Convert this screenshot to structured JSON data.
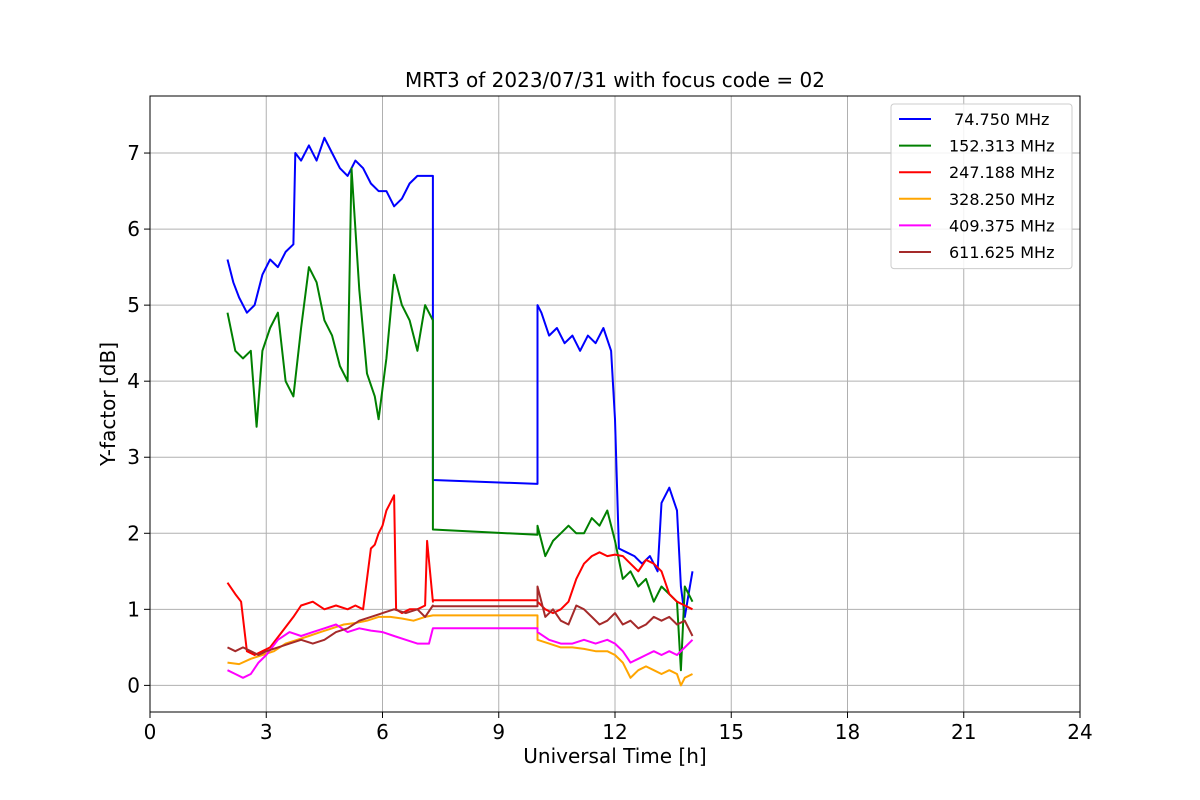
{
  "chart_data": {
    "type": "line",
    "title": "MRT3 of 2023/07/31 with focus code = 02",
    "xlabel": "Universal Time [h]",
    "ylabel": "Y-factor [dB]",
    "xlim": [
      0,
      24
    ],
    "ylim": [
      -0.35,
      7.75
    ],
    "xticks": [
      0,
      3,
      6,
      9,
      12,
      15,
      18,
      21,
      24
    ],
    "yticks": [
      0,
      1,
      2,
      3,
      4,
      5,
      6,
      7
    ],
    "grid": true,
    "legend_position": "top-right",
    "series": [
      {
        "name": " 74.750 MHz",
        "color": "#0000ff",
        "x": [
          2.0,
          2.15,
          2.3,
          2.5,
          2.7,
          2.9,
          3.1,
          3.3,
          3.5,
          3.7,
          3.75,
          3.9,
          4.1,
          4.3,
          4.5,
          4.7,
          4.9,
          5.1,
          5.3,
          5.5,
          5.7,
          5.9,
          6.1,
          6.3,
          6.5,
          6.7,
          6.9,
          7.1,
          7.2,
          7.3,
          7.3,
          10.0,
          10.0,
          10.1,
          10.3,
          10.5,
          10.7,
          10.9,
          11.1,
          11.3,
          11.5,
          11.7,
          11.9,
          12.0,
          12.1,
          12.3,
          12.5,
          12.7,
          12.9,
          13.1,
          13.2,
          13.4,
          13.6,
          13.7,
          13.8,
          13.9,
          14.0
        ],
        "y": [
          5.6,
          5.3,
          5.1,
          4.9,
          5.0,
          5.4,
          5.6,
          5.5,
          5.7,
          5.8,
          7.0,
          6.9,
          7.1,
          6.9,
          7.2,
          7.0,
          6.8,
          6.7,
          6.9,
          6.8,
          6.6,
          6.5,
          6.5,
          6.3,
          6.4,
          6.6,
          6.7,
          6.7,
          6.7,
          6.7,
          2.7,
          2.65,
          5.0,
          4.9,
          4.6,
          4.7,
          4.5,
          4.6,
          4.4,
          4.6,
          4.5,
          4.7,
          4.4,
          3.5,
          1.8,
          1.75,
          1.7,
          1.6,
          1.7,
          1.5,
          2.4,
          2.6,
          2.3,
          1.3,
          0.9,
          1.2,
          1.5
        ]
      },
      {
        "name": "152.313 MHz",
        "color": "#008000",
        "x": [
          2.0,
          2.2,
          2.4,
          2.6,
          2.75,
          2.9,
          3.1,
          3.3,
          3.5,
          3.7,
          3.9,
          4.1,
          4.3,
          4.5,
          4.7,
          4.9,
          5.1,
          5.2,
          5.4,
          5.6,
          5.8,
          5.9,
          6.1,
          6.3,
          6.5,
          6.7,
          6.9,
          7.1,
          7.2,
          7.3,
          7.3,
          10.0,
          10.0,
          10.2,
          10.4,
          10.6,
          10.8,
          11.0,
          11.2,
          11.4,
          11.6,
          11.8,
          12.0,
          12.2,
          12.4,
          12.6,
          12.8,
          13.0,
          13.2,
          13.4,
          13.6,
          13.7,
          13.8,
          14.0
        ],
        "y": [
          4.9,
          4.4,
          4.3,
          4.4,
          3.4,
          4.4,
          4.7,
          4.9,
          4.0,
          3.8,
          4.7,
          5.5,
          5.3,
          4.8,
          4.6,
          4.2,
          4.0,
          6.8,
          5.2,
          4.1,
          3.8,
          3.5,
          4.3,
          5.4,
          5.0,
          4.8,
          4.4,
          5.0,
          4.9,
          4.8,
          2.05,
          1.98,
          2.1,
          1.7,
          1.9,
          2.0,
          2.1,
          2.0,
          2.0,
          2.2,
          2.1,
          2.3,
          1.9,
          1.4,
          1.5,
          1.3,
          1.4,
          1.1,
          1.3,
          1.2,
          1.1,
          0.2,
          1.3,
          1.1
        ]
      },
      {
        "name": "247.188 MHz",
        "color": "#ff0000",
        "x": [
          2.0,
          2.2,
          2.35,
          2.5,
          2.7,
          2.9,
          3.1,
          3.4,
          3.7,
          3.9,
          4.2,
          4.5,
          4.8,
          5.1,
          5.3,
          5.5,
          5.7,
          5.8,
          5.9,
          6.0,
          6.1,
          6.2,
          6.3,
          6.35,
          6.5,
          6.7,
          6.9,
          7.1,
          7.15,
          7.3,
          7.3,
          10.0,
          10.0,
          10.2,
          10.4,
          10.6,
          10.8,
          11.0,
          11.2,
          11.4,
          11.6,
          11.8,
          12.0,
          12.2,
          12.4,
          12.6,
          12.8,
          13.0,
          13.2,
          13.4,
          13.6,
          13.8,
          14.0
        ],
        "y": [
          1.35,
          1.2,
          1.1,
          0.45,
          0.4,
          0.45,
          0.5,
          0.7,
          0.9,
          1.05,
          1.1,
          1.0,
          1.05,
          1.0,
          1.05,
          1.0,
          1.8,
          1.85,
          2.0,
          2.1,
          2.3,
          2.4,
          2.5,
          1.0,
          0.95,
          1.0,
          1.0,
          1.05,
          1.9,
          1.1,
          1.12,
          1.12,
          1.1,
          1.0,
          0.95,
          1.0,
          1.1,
          1.4,
          1.6,
          1.7,
          1.75,
          1.7,
          1.72,
          1.7,
          1.6,
          1.5,
          1.65,
          1.6,
          1.5,
          1.2,
          1.1,
          1.05,
          1.0
        ]
      },
      {
        "name": "328.250 MHz",
        "color": "#ffa500",
        "x": [
          2.0,
          2.3,
          2.6,
          2.9,
          3.2,
          3.5,
          3.8,
          4.1,
          4.4,
          4.7,
          5.0,
          5.3,
          5.6,
          5.9,
          6.2,
          6.5,
          6.8,
          7.1,
          7.3,
          7.3,
          10.0,
          10.0,
          10.3,
          10.6,
          10.9,
          11.2,
          11.5,
          11.8,
          12.0,
          12.2,
          12.4,
          12.6,
          12.8,
          13.0,
          13.2,
          13.4,
          13.6,
          13.7,
          13.8,
          14.0
        ],
        "y": [
          0.3,
          0.28,
          0.35,
          0.4,
          0.45,
          0.55,
          0.6,
          0.65,
          0.7,
          0.75,
          0.8,
          0.82,
          0.85,
          0.9,
          0.9,
          0.88,
          0.85,
          0.9,
          0.92,
          0.92,
          0.92,
          0.6,
          0.55,
          0.5,
          0.5,
          0.48,
          0.45,
          0.45,
          0.4,
          0.3,
          0.1,
          0.2,
          0.25,
          0.2,
          0.15,
          0.2,
          0.15,
          0.0,
          0.1,
          0.15
        ]
      },
      {
        "name": "409.375 MHz",
        "color": "#ff00ff",
        "x": [
          2.0,
          2.2,
          2.4,
          2.6,
          2.8,
          3.0,
          3.3,
          3.6,
          3.9,
          4.2,
          4.5,
          4.8,
          5.1,
          5.4,
          5.7,
          6.0,
          6.3,
          6.6,
          6.9,
          7.2,
          7.3,
          7.3,
          10.0,
          10.0,
          10.3,
          10.6,
          10.9,
          11.2,
          11.5,
          11.8,
          12.0,
          12.2,
          12.4,
          12.6,
          12.8,
          13.0,
          13.2,
          13.4,
          13.6,
          13.8,
          14.0
        ],
        "y": [
          0.2,
          0.15,
          0.1,
          0.15,
          0.3,
          0.4,
          0.6,
          0.7,
          0.65,
          0.7,
          0.75,
          0.8,
          0.7,
          0.75,
          0.72,
          0.7,
          0.65,
          0.6,
          0.55,
          0.55,
          0.75,
          0.75,
          0.75,
          0.7,
          0.6,
          0.55,
          0.55,
          0.6,
          0.55,
          0.6,
          0.55,
          0.45,
          0.3,
          0.35,
          0.4,
          0.45,
          0.4,
          0.45,
          0.4,
          0.5,
          0.6
        ]
      },
      {
        "name": "611.625 MHz",
        "color": "#a52a2a",
        "x": [
          2.0,
          2.2,
          2.4,
          2.6,
          2.8,
          3.0,
          3.3,
          3.6,
          3.9,
          4.2,
          4.5,
          4.8,
          5.1,
          5.4,
          5.7,
          6.0,
          6.3,
          6.6,
          6.9,
          7.1,
          7.3,
          7.3,
          10.0,
          10.0,
          10.2,
          10.4,
          10.6,
          10.8,
          11.0,
          11.2,
          11.4,
          11.6,
          11.8,
          12.0,
          12.2,
          12.4,
          12.6,
          12.8,
          13.0,
          13.2,
          13.4,
          13.6,
          13.8,
          14.0
        ],
        "y": [
          0.5,
          0.45,
          0.5,
          0.45,
          0.4,
          0.45,
          0.5,
          0.55,
          0.6,
          0.55,
          0.6,
          0.7,
          0.75,
          0.85,
          0.9,
          0.95,
          1.0,
          0.95,
          1.0,
          0.9,
          1.05,
          1.04,
          1.04,
          1.3,
          0.9,
          1.0,
          0.85,
          0.8,
          1.05,
          1.0,
          0.9,
          0.8,
          0.85,
          0.95,
          0.8,
          0.85,
          0.75,
          0.8,
          0.9,
          0.85,
          0.9,
          0.8,
          0.85,
          0.65
        ]
      }
    ]
  }
}
